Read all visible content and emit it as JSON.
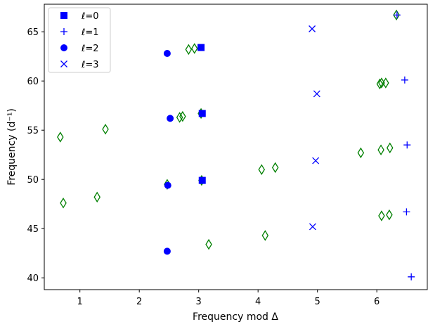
{
  "chart_data": {
    "type": "scatter",
    "xlabel": "Frequency mod Δ",
    "ylabel": "Frequency (d⁻¹)",
    "xlim": [
      0.4,
      6.85
    ],
    "ylim": [
      38.8,
      67.8
    ],
    "xticks": [
      1,
      2,
      3,
      4,
      5,
      6
    ],
    "yticks": [
      40,
      45,
      50,
      55,
      60,
      65
    ],
    "grid": false,
    "legend_position": "top-left",
    "series": [
      {
        "name": "ℓ=0",
        "marker": "square",
        "color": "#0000ff",
        "points": [
          [
            3.04,
            63.4
          ],
          [
            3.06,
            56.7
          ],
          [
            3.06,
            49.9
          ]
        ]
      },
      {
        "name": "ℓ=1",
        "marker": "plus",
        "color": "#0000ff",
        "points": [
          [
            6.34,
            66.7
          ],
          [
            6.47,
            60.1
          ],
          [
            6.51,
            53.5
          ],
          [
            6.5,
            46.7
          ],
          [
            6.58,
            40.1
          ]
        ]
      },
      {
        "name": "ℓ=2",
        "marker": "circle",
        "color": "#0000ff",
        "points": [
          [
            2.47,
            62.8
          ],
          [
            2.52,
            56.2
          ],
          [
            2.48,
            49.4
          ],
          [
            2.47,
            42.7
          ]
        ]
      },
      {
        "name": "ℓ=3",
        "marker": "x",
        "color": "#0000ff",
        "points": [
          [
            4.91,
            65.3
          ],
          [
            4.99,
            58.7
          ],
          [
            4.97,
            51.9
          ],
          [
            4.92,
            45.2
          ]
        ]
      },
      {
        "marker": "diamond",
        "color": "#008000",
        "points": [
          [
            0.67,
            54.3
          ],
          [
            0.72,
            47.6
          ],
          [
            1.29,
            48.2
          ],
          [
            1.43,
            55.1
          ],
          [
            2.47,
            49.5
          ],
          [
            2.68,
            56.3
          ],
          [
            2.73,
            56.4
          ],
          [
            2.83,
            63.2
          ],
          [
            2.93,
            63.3
          ],
          [
            3.04,
            56.7
          ],
          [
            3.05,
            49.9
          ],
          [
            3.17,
            43.4
          ],
          [
            4.06,
            51.0
          ],
          [
            4.12,
            44.3
          ],
          [
            4.29,
            51.2
          ],
          [
            5.73,
            52.7
          ],
          [
            6.05,
            59.7
          ],
          [
            6.08,
            59.8
          ],
          [
            6.15,
            59.8
          ],
          [
            6.07,
            53.0
          ],
          [
            6.22,
            53.2
          ],
          [
            6.08,
            46.3
          ],
          [
            6.21,
            46.4
          ],
          [
            6.33,
            66.7
          ]
        ]
      }
    ]
  }
}
